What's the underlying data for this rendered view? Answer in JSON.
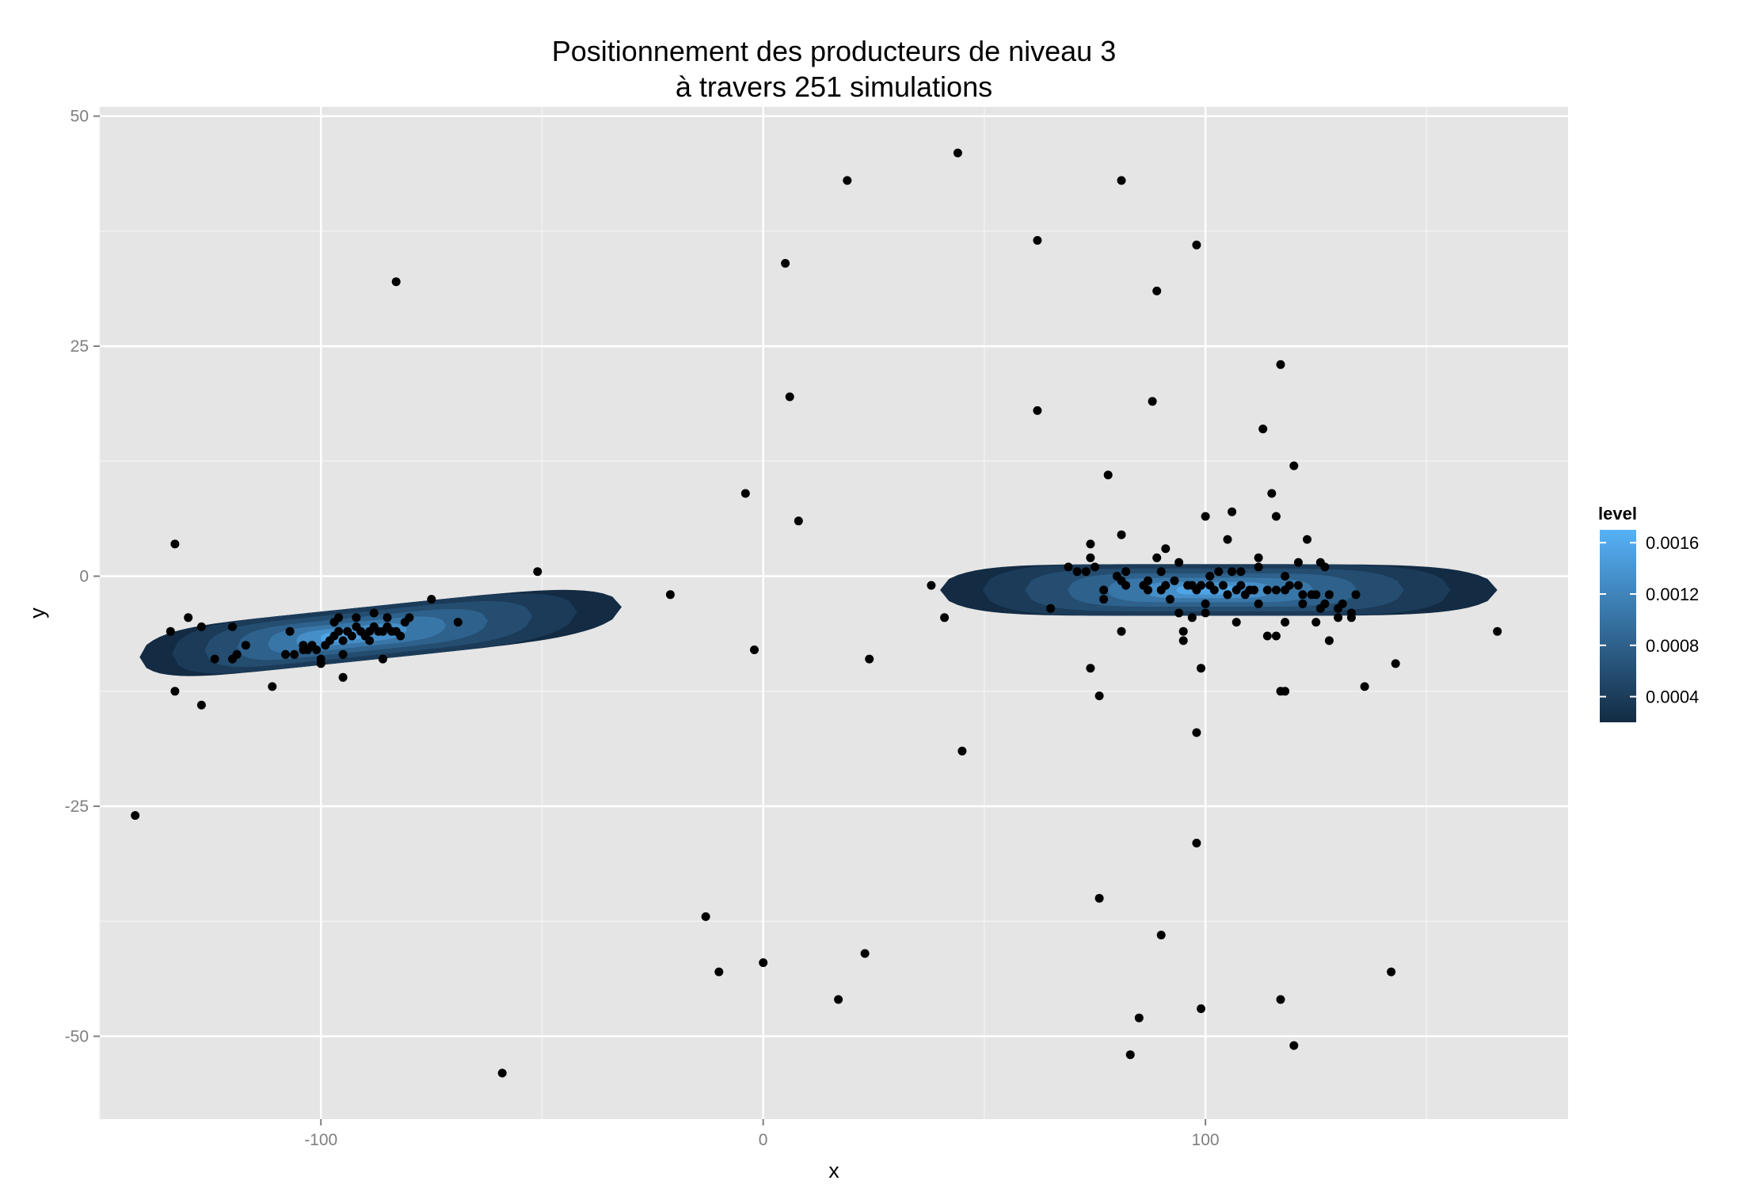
{
  "chart_data": {
    "type": "scatter",
    "title": "Positionnement des producteurs de niveau 3",
    "subtitle": "à travers  251  simulations",
    "xlabel": "x",
    "ylabel": "y",
    "xlim": [
      -150,
      182
    ],
    "ylim": [
      -59,
      51
    ],
    "x_ticks": [
      -100,
      0,
      100
    ],
    "x_tick_labels": [
      "-100",
      "0",
      "100"
    ],
    "y_ticks": [
      50,
      25,
      0,
      -25,
      -50
    ],
    "y_tick_labels": [
      "50",
      "25",
      "0",
      "-25",
      "-50"
    ],
    "grid": true,
    "background": "#e5e5e5",
    "point_color": "#000000",
    "legend": {
      "title": "level",
      "position": "right",
      "labels": [
        "0.0016",
        "0.0012",
        "0.0008",
        "0.0004"
      ],
      "values": [
        0.0016,
        0.0012,
        0.0008,
        0.0004
      ],
      "range": [
        0.0002,
        0.0017
      ],
      "color_low": "#132b43",
      "color_high": "#56b1f7"
    },
    "density_contours": [
      {
        "cx": -95,
        "cy": -6.5,
        "x_left": -141,
        "x_right": -32,
        "half_height": 2.9,
        "tilt": 0.05
      },
      {
        "cx": 100,
        "cy": -1.5,
        "x_left": 40,
        "x_right": 166,
        "half_height": 2.8,
        "tilt": 0
      }
    ],
    "points": [
      [
        -142,
        -26
      ],
      [
        -133,
        3.5
      ],
      [
        -133,
        -12.5
      ],
      [
        -127,
        -14
      ],
      [
        -134,
        -6
      ],
      [
        -130,
        -4.5
      ],
      [
        -127,
        -5.5
      ],
      [
        -124,
        -9
      ],
      [
        -120,
        -5.5
      ],
      [
        -120,
        -9
      ],
      [
        -119,
        -8.5
      ],
      [
        -117,
        -7.5
      ],
      [
        -111,
        -12
      ],
      [
        -107,
        -6
      ],
      [
        -108,
        -8.5
      ],
      [
        -106,
        -8.5
      ],
      [
        -104,
        -8
      ],
      [
        -103,
        -8
      ],
      [
        -104,
        -7.5
      ],
      [
        -102,
        -7.5
      ],
      [
        -101,
        -8
      ],
      [
        -100,
        -9.5
      ],
      [
        -100,
        -9
      ],
      [
        -99,
        -7.5
      ],
      [
        -98,
        -7
      ],
      [
        -97,
        -6.5
      ],
      [
        -97,
        -5
      ],
      [
        -96,
        -4.5
      ],
      [
        -96,
        -6
      ],
      [
        -95,
        -7
      ],
      [
        -95,
        -11
      ],
      [
        -95,
        -8.5
      ],
      [
        -94,
        -6
      ],
      [
        -93,
        -6.5
      ],
      [
        -92,
        -5.5
      ],
      [
        -92,
        -4.5
      ],
      [
        -91,
        -6
      ],
      [
        -90,
        -6.5
      ],
      [
        -89,
        -6
      ],
      [
        -89,
        -7
      ],
      [
        -88,
        -5.5
      ],
      [
        -88,
        -4
      ],
      [
        -87,
        -6
      ],
      [
        -86,
        -6
      ],
      [
        -86,
        -9
      ],
      [
        -85,
        -5.5
      ],
      [
        -85,
        -4.5
      ],
      [
        -84,
        -6
      ],
      [
        -83,
        -6
      ],
      [
        -82,
        -6.5
      ],
      [
        -81,
        -5
      ],
      [
        -80,
        -4.5
      ],
      [
        -83,
        32
      ],
      [
        -75,
        -2.5
      ],
      [
        -69,
        -5
      ],
      [
        -59,
        -54
      ],
      [
        -51,
        0.5
      ],
      [
        -21,
        -2
      ],
      [
        -13,
        -37
      ],
      [
        -10,
        -43
      ],
      [
        -4,
        9
      ],
      [
        -2,
        -8
      ],
      [
        0,
        -42
      ],
      [
        5,
        34
      ],
      [
        6,
        19.5
      ],
      [
        8,
        6
      ],
      [
        17,
        -46
      ],
      [
        19,
        43
      ],
      [
        23,
        -41
      ],
      [
        24,
        -9
      ],
      [
        38,
        -1
      ],
      [
        41,
        -4.5
      ],
      [
        44,
        46
      ],
      [
        45,
        -19
      ],
      [
        62,
        36.5
      ],
      [
        62,
        18
      ],
      [
        65,
        -3.5
      ],
      [
        69,
        1
      ],
      [
        71,
        0.5
      ],
      [
        73,
        0.5
      ],
      [
        74,
        3.5
      ],
      [
        74,
        2
      ],
      [
        75,
        1
      ],
      [
        74,
        -10
      ],
      [
        76,
        -13
      ],
      [
        76,
        -35
      ],
      [
        77,
        -1.5
      ],
      [
        77,
        -2.5
      ],
      [
        78,
        11
      ],
      [
        80,
        0
      ],
      [
        81,
        -0.5
      ],
      [
        81,
        4.5
      ],
      [
        81,
        -6
      ],
      [
        81,
        43
      ],
      [
        82,
        0.5
      ],
      [
        82,
        -1
      ],
      [
        83,
        -52
      ],
      [
        85,
        -48
      ],
      [
        86,
        -1
      ],
      [
        87,
        -0.5
      ],
      [
        87,
        -1.5
      ],
      [
        88,
        19
      ],
      [
        89,
        31
      ],
      [
        89,
        2
      ],
      [
        90,
        -1.5
      ],
      [
        90,
        0.5
      ],
      [
        90,
        -39
      ],
      [
        91,
        3
      ],
      [
        91,
        -1
      ],
      [
        92,
        -2.5
      ],
      [
        93,
        -0.5
      ],
      [
        94,
        1.5
      ],
      [
        94,
        -4
      ],
      [
        95,
        -6
      ],
      [
        95,
        -7
      ],
      [
        96,
        -1
      ],
      [
        97,
        -1
      ],
      [
        97,
        -4.5
      ],
      [
        98,
        36
      ],
      [
        98,
        -1.5
      ],
      [
        98,
        -17
      ],
      [
        98,
        -29
      ],
      [
        99,
        -1
      ],
      [
        99,
        -10
      ],
      [
        99,
        -47
      ],
      [
        100,
        6.5
      ],
      [
        100,
        -4
      ],
      [
        100,
        -3
      ],
      [
        101,
        -1
      ],
      [
        101,
        0
      ],
      [
        102,
        -1.5
      ],
      [
        103,
        0.5
      ],
      [
        104,
        -1
      ],
      [
        105,
        -2
      ],
      [
        105,
        4
      ],
      [
        106,
        7
      ],
      [
        106,
        0.5
      ],
      [
        107,
        -1.5
      ],
      [
        107,
        -5
      ],
      [
        108,
        -1
      ],
      [
        108,
        0.5
      ],
      [
        109,
        -2
      ],
      [
        110,
        -1.5
      ],
      [
        111,
        -1.5
      ],
      [
        112,
        -3
      ],
      [
        112,
        1
      ],
      [
        112,
        2
      ],
      [
        113,
        16
      ],
      [
        114,
        -1.5
      ],
      [
        114,
        -6.5
      ],
      [
        115,
        9
      ],
      [
        116,
        -1.5
      ],
      [
        116,
        6.5
      ],
      [
        116,
        -6.5
      ],
      [
        117,
        23
      ],
      [
        117,
        -12.5
      ],
      [
        117,
        -46
      ],
      [
        118,
        -12.5
      ],
      [
        118,
        -5
      ],
      [
        118,
        -1.5
      ],
      [
        118,
        0
      ],
      [
        119,
        -1
      ],
      [
        120,
        12
      ],
      [
        120,
        -51
      ],
      [
        121,
        -1
      ],
      [
        121,
        1.5
      ],
      [
        122,
        -2
      ],
      [
        122,
        -3
      ],
      [
        123,
        4
      ],
      [
        124,
        -2
      ],
      [
        125,
        -2
      ],
      [
        125,
        -5
      ],
      [
        126,
        1.5
      ],
      [
        126,
        -3.5
      ],
      [
        127,
        1
      ],
      [
        127,
        -3
      ],
      [
        128,
        -2
      ],
      [
        128,
        -7
      ],
      [
        130,
        -3.5
      ],
      [
        130,
        -4.5
      ],
      [
        131,
        -3
      ],
      [
        133,
        -4
      ],
      [
        133,
        -4.5
      ],
      [
        134,
        -2
      ],
      [
        136,
        -12
      ],
      [
        142,
        -43
      ],
      [
        143,
        -9.5
      ],
      [
        166,
        -6
      ]
    ]
  }
}
